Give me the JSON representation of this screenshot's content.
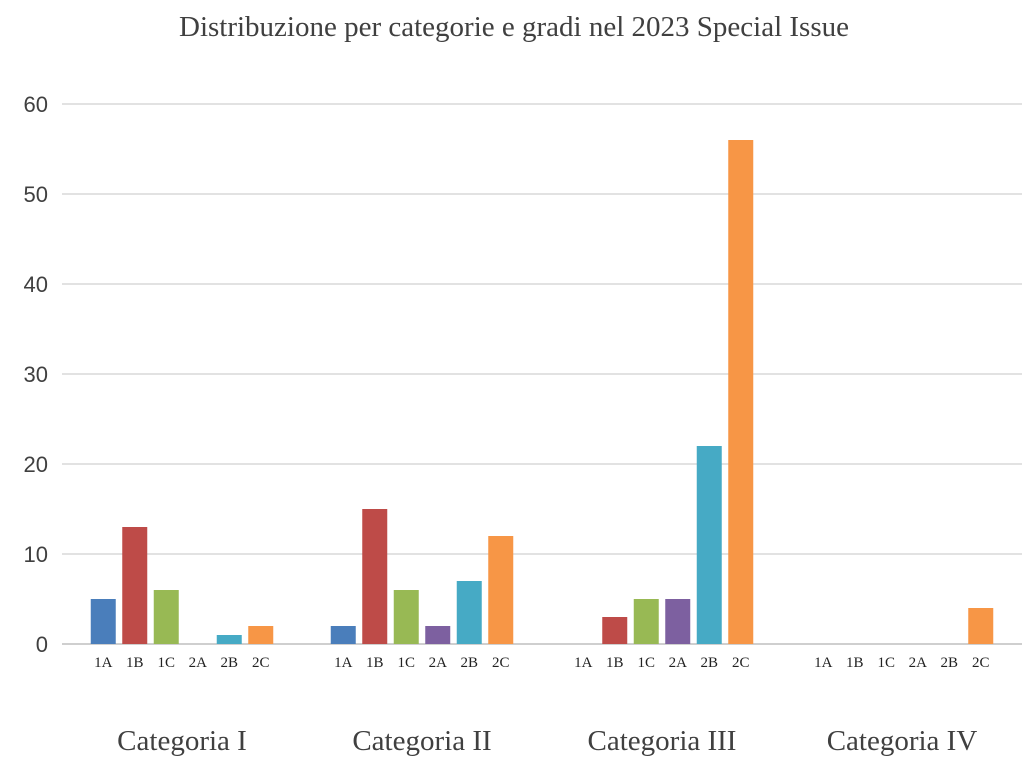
{
  "chart_data": {
    "type": "bar",
    "title": "Distribuzione per categorie e gradi nel 2023 Special Issue",
    "xlabel": "",
    "ylabel": "",
    "ylim": [
      0,
      60
    ],
    "yticks": [
      0,
      10,
      20,
      30,
      40,
      50,
      60
    ],
    "grid": true,
    "legend": "none",
    "groups": [
      {
        "name": "Categoria I",
        "bars": [
          {
            "label": "1A",
            "value": 5
          },
          {
            "label": "1B",
            "value": 13
          },
          {
            "label": "1C",
            "value": 6
          },
          {
            "label": "2A",
            "value": 0
          },
          {
            "label": "2B",
            "value": 1
          },
          {
            "label": "2C",
            "value": 2
          }
        ]
      },
      {
        "name": "Categoria II",
        "bars": [
          {
            "label": "1A",
            "value": 2
          },
          {
            "label": "1B",
            "value": 15
          },
          {
            "label": "1C",
            "value": 6
          },
          {
            "label": "2A",
            "value": 2
          },
          {
            "label": "2B",
            "value": 7
          },
          {
            "label": "2C",
            "value": 12
          }
        ]
      },
      {
        "name": "Categoria III",
        "bars": [
          {
            "label": "1A",
            "value": 0
          },
          {
            "label": "1B",
            "value": 3
          },
          {
            "label": "1C",
            "value": 5
          },
          {
            "label": "2A",
            "value": 5
          },
          {
            "label": "2B",
            "value": 22
          },
          {
            "label": "2C",
            "value": 56
          }
        ]
      },
      {
        "name": "Categoria IV",
        "bars": [
          {
            "label": "1A",
            "value": 0
          },
          {
            "label": "1B",
            "value": 0
          },
          {
            "label": "1C",
            "value": 0
          },
          {
            "label": "2A",
            "value": 0
          },
          {
            "label": "2B",
            "value": 0
          },
          {
            "label": "2C",
            "value": 4
          }
        ]
      }
    ],
    "colors": {
      "1A": "#4a7ebb",
      "1B": "#be4b48",
      "1C": "#98b954",
      "2A": "#7d60a0",
      "2B": "#46aac5",
      "2C": "#f79646"
    }
  }
}
